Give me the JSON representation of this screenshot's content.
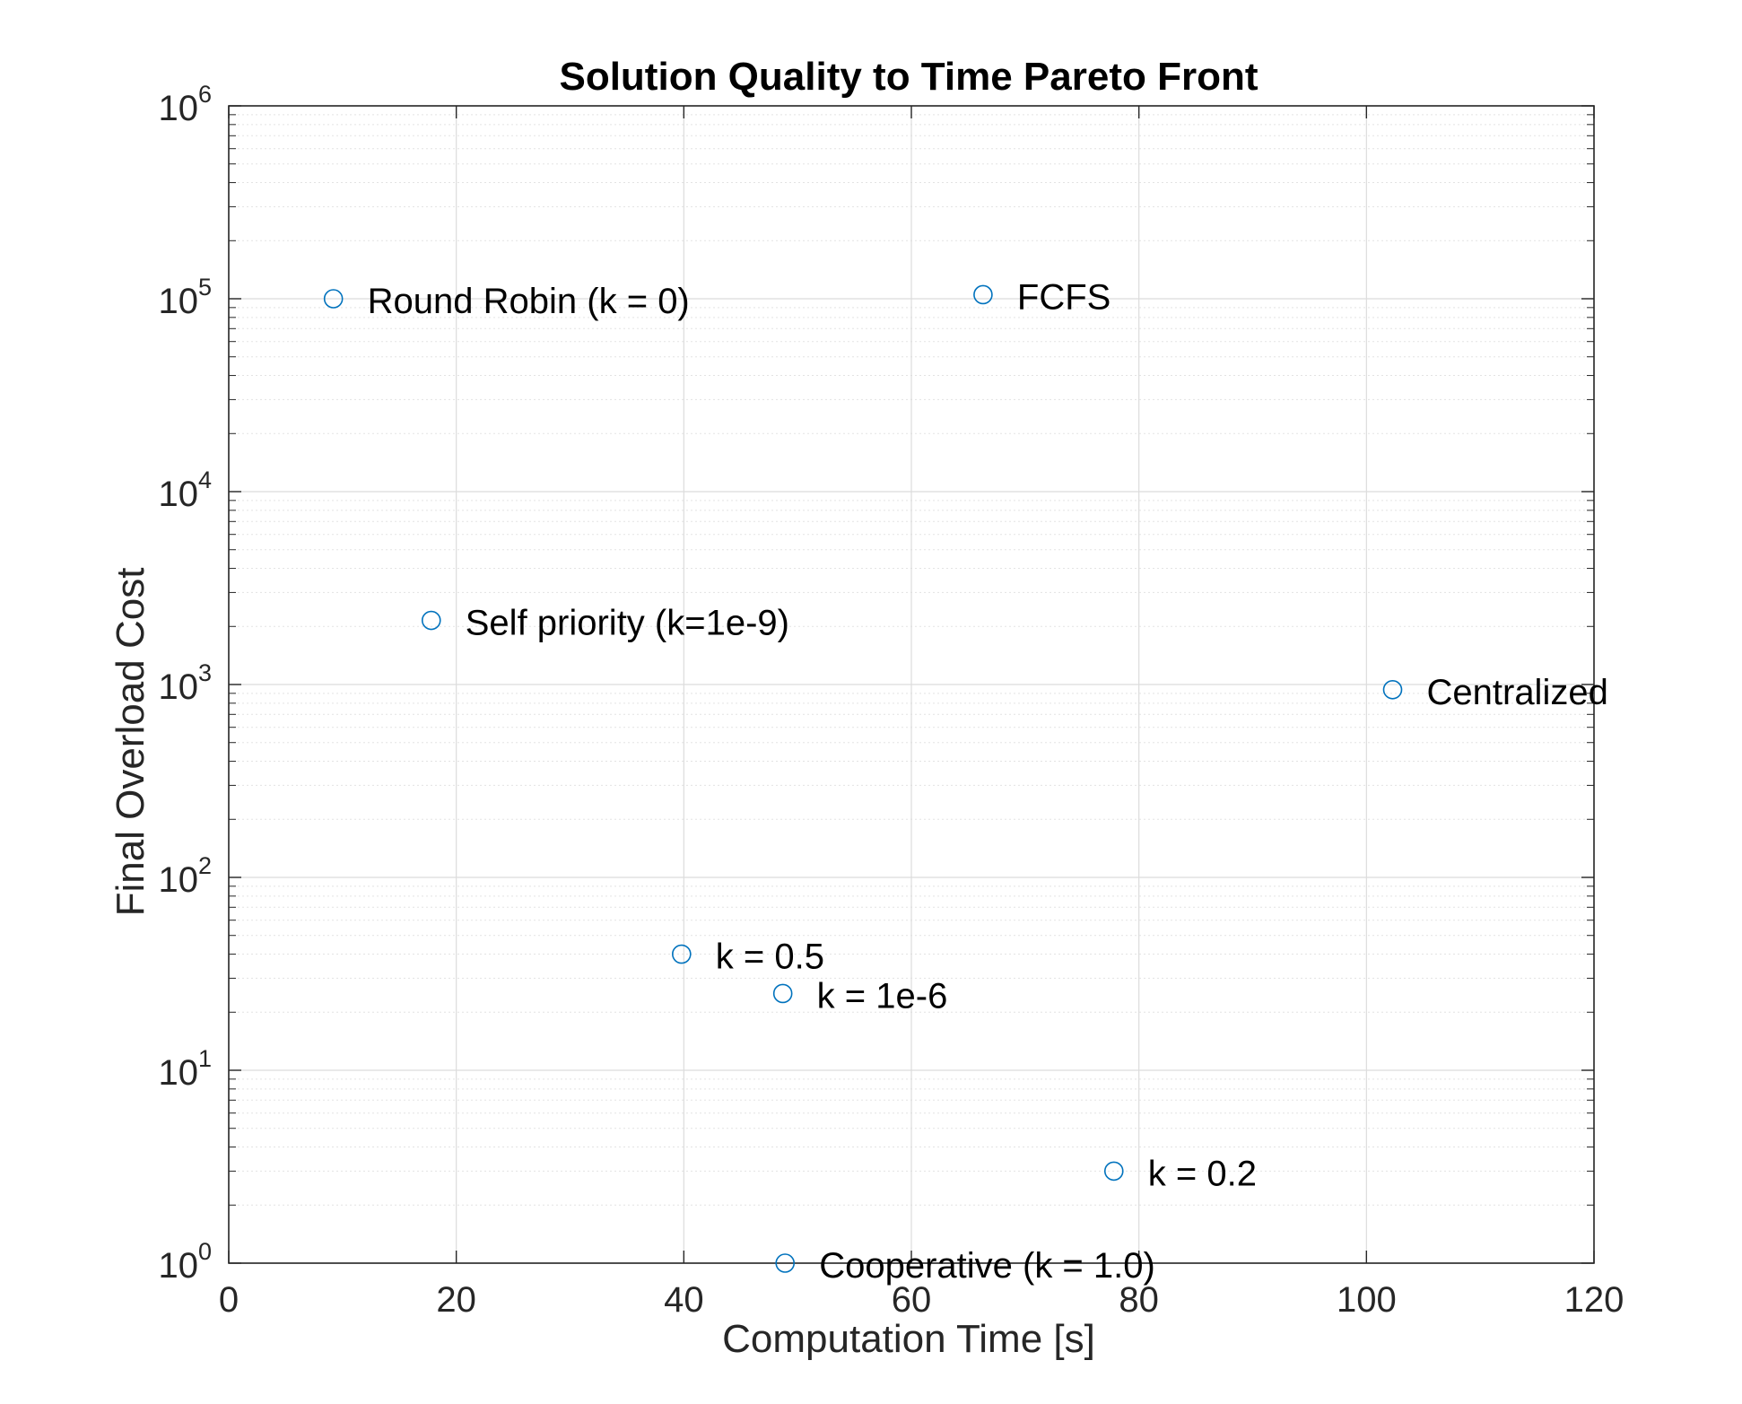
{
  "chart_data": {
    "type": "scatter",
    "title": "Solution Quality to Time Pareto Front",
    "xlabel": "Computation Time [s]",
    "ylabel": "Final Overload Cost",
    "xlim": [
      0,
      120
    ],
    "ylim": [
      1,
      1000000
    ],
    "yscale": "log",
    "grid": true,
    "minor_grid": true,
    "x_ticks": [
      0,
      20,
      40,
      60,
      80,
      100,
      120
    ],
    "x_tick_labels": [
      "0",
      "20",
      "40",
      "60",
      "80",
      "100",
      "120"
    ],
    "y_ticks": [
      1,
      10,
      100,
      1000,
      10000,
      100000,
      1000000
    ],
    "y_tick_labels": [
      {
        "base": "10",
        "exp": "0"
      },
      {
        "base": "10",
        "exp": "1"
      },
      {
        "base": "10",
        "exp": "2"
      },
      {
        "base": "10",
        "exp": "3"
      },
      {
        "base": "10",
        "exp": "4"
      },
      {
        "base": "10",
        "exp": "5"
      },
      {
        "base": "10",
        "exp": "6"
      }
    ],
    "marker": "circle-open",
    "marker_color": "#0072bd",
    "points": [
      {
        "label": "Round Robin (k = 0)",
        "x": 9.2,
        "y": 100000
      },
      {
        "label": "FCFS",
        "x": 66.3,
        "y": 105000
      },
      {
        "label": "Self priority (k=1e-9)",
        "x": 17.8,
        "y": 2150
      },
      {
        "label": "Centralized",
        "x": 102.3,
        "y": 940
      },
      {
        "label": "k = 0.5",
        "x": 39.8,
        "y": 40
      },
      {
        "label": "k = 1e-6",
        "x": 48.7,
        "y": 25
      },
      {
        "label": "k = 0.2",
        "x": 77.8,
        "y": 3.0
      },
      {
        "label": "Cooperative (k = 1.0)",
        "x": 48.9,
        "y": 1.0
      }
    ]
  }
}
